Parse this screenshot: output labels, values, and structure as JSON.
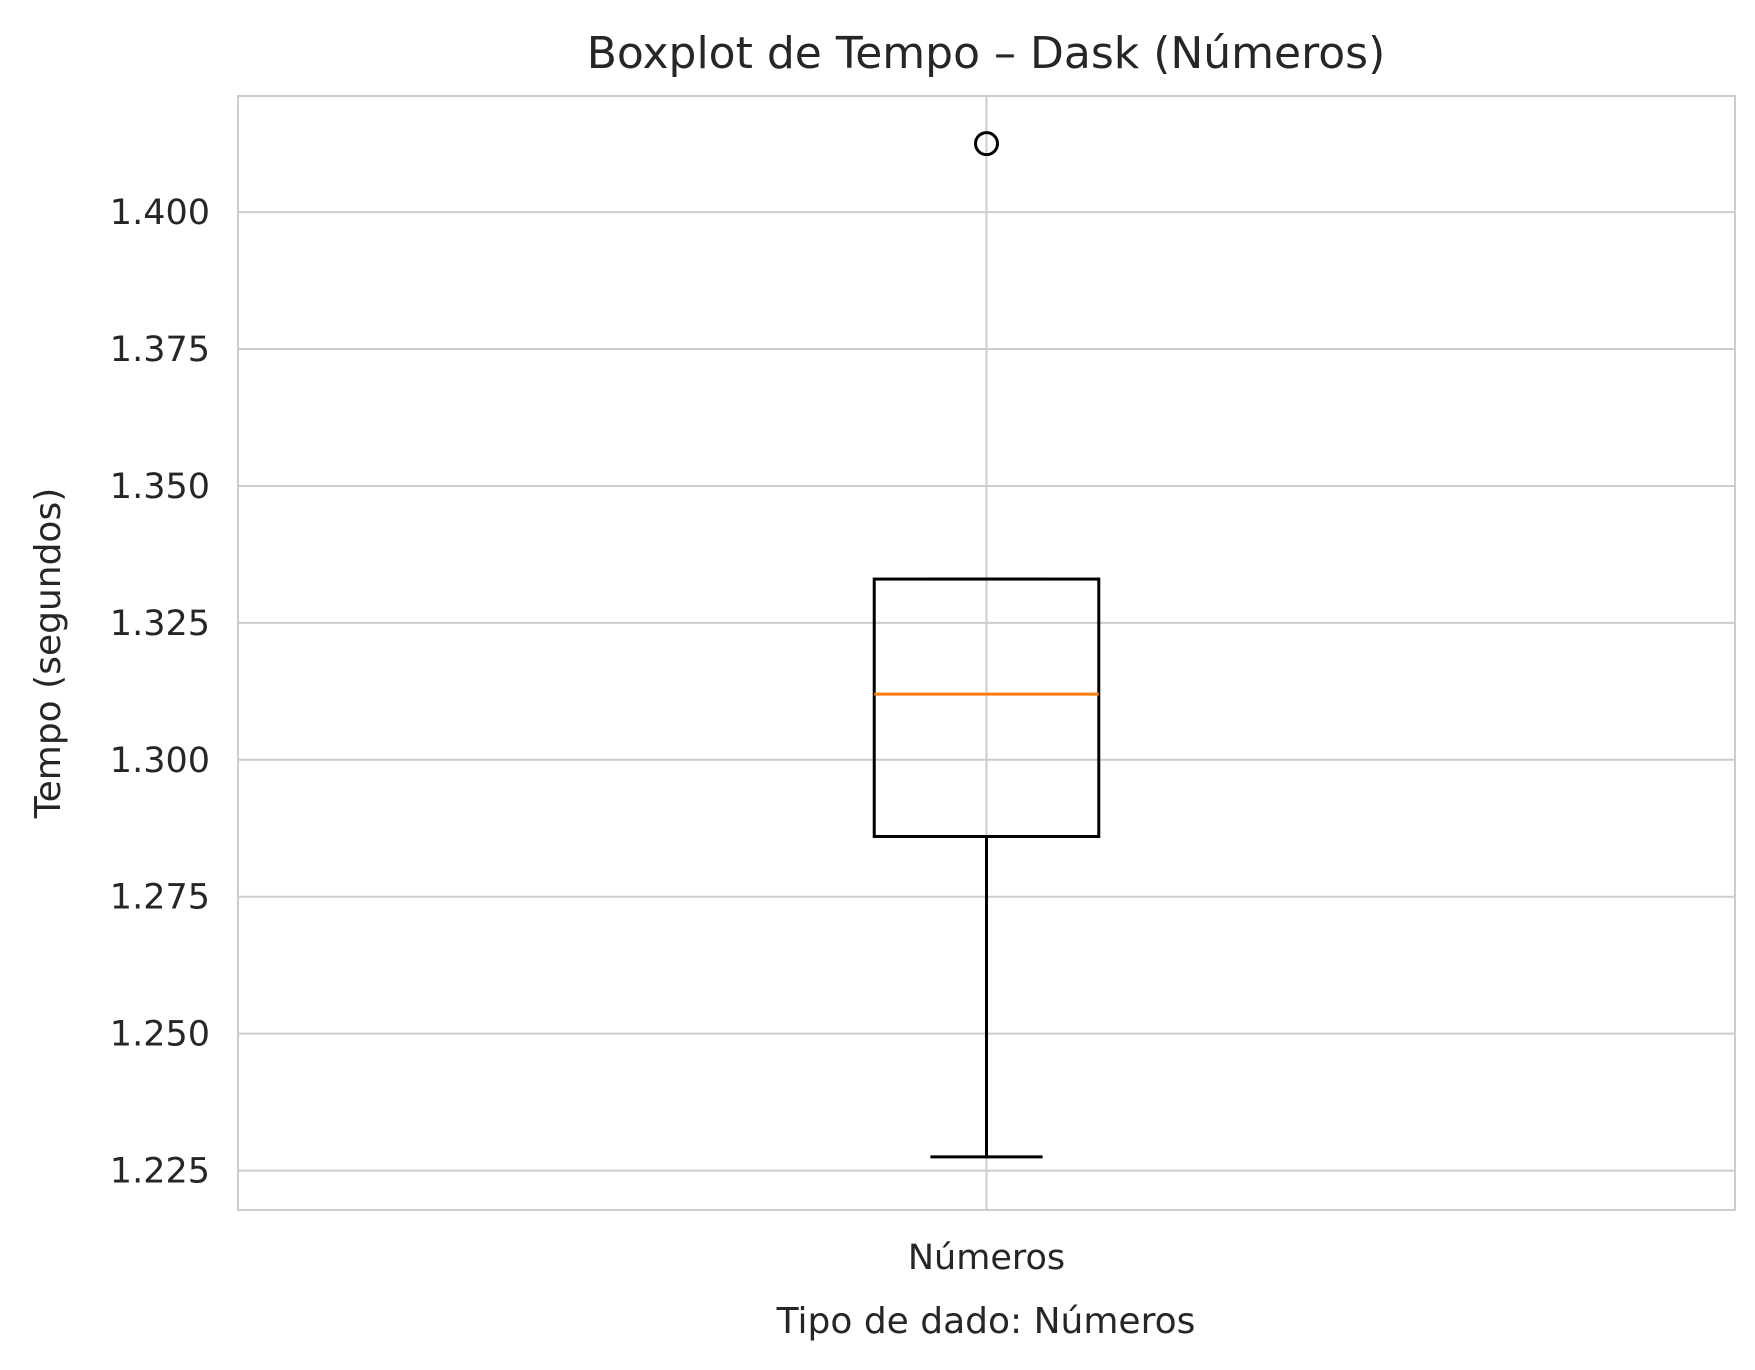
{
  "chart_data": {
    "type": "boxplot",
    "title": "Boxplot de Tempo – Dask (Números)",
    "xlabel": "Tipo de dado: Números",
    "ylabel": "Tempo (segundos)",
    "categories": [
      "Números"
    ],
    "boxes": [
      {
        "category": "Números",
        "whisker_low": 1.2275,
        "q1": 1.286,
        "median": 1.312,
        "q3": 1.333,
        "whisker_high": 1.333,
        "outliers": [
          1.4125
        ]
      }
    ],
    "yticks": [
      1.225,
      1.25,
      1.275,
      1.3,
      1.325,
      1.35,
      1.375,
      1.4
    ],
    "ytick_labels": [
      "1.225",
      "1.250",
      "1.275",
      "1.300",
      "1.325",
      "1.350",
      "1.375",
      "1.400"
    ],
    "ylim": [
      1.2178,
      1.4212
    ],
    "grid": true,
    "colors": {
      "box": "#000000",
      "median": "#ff7f0e",
      "grid": "#cccccc",
      "spine": "#cccccc",
      "text": "#262626"
    }
  }
}
